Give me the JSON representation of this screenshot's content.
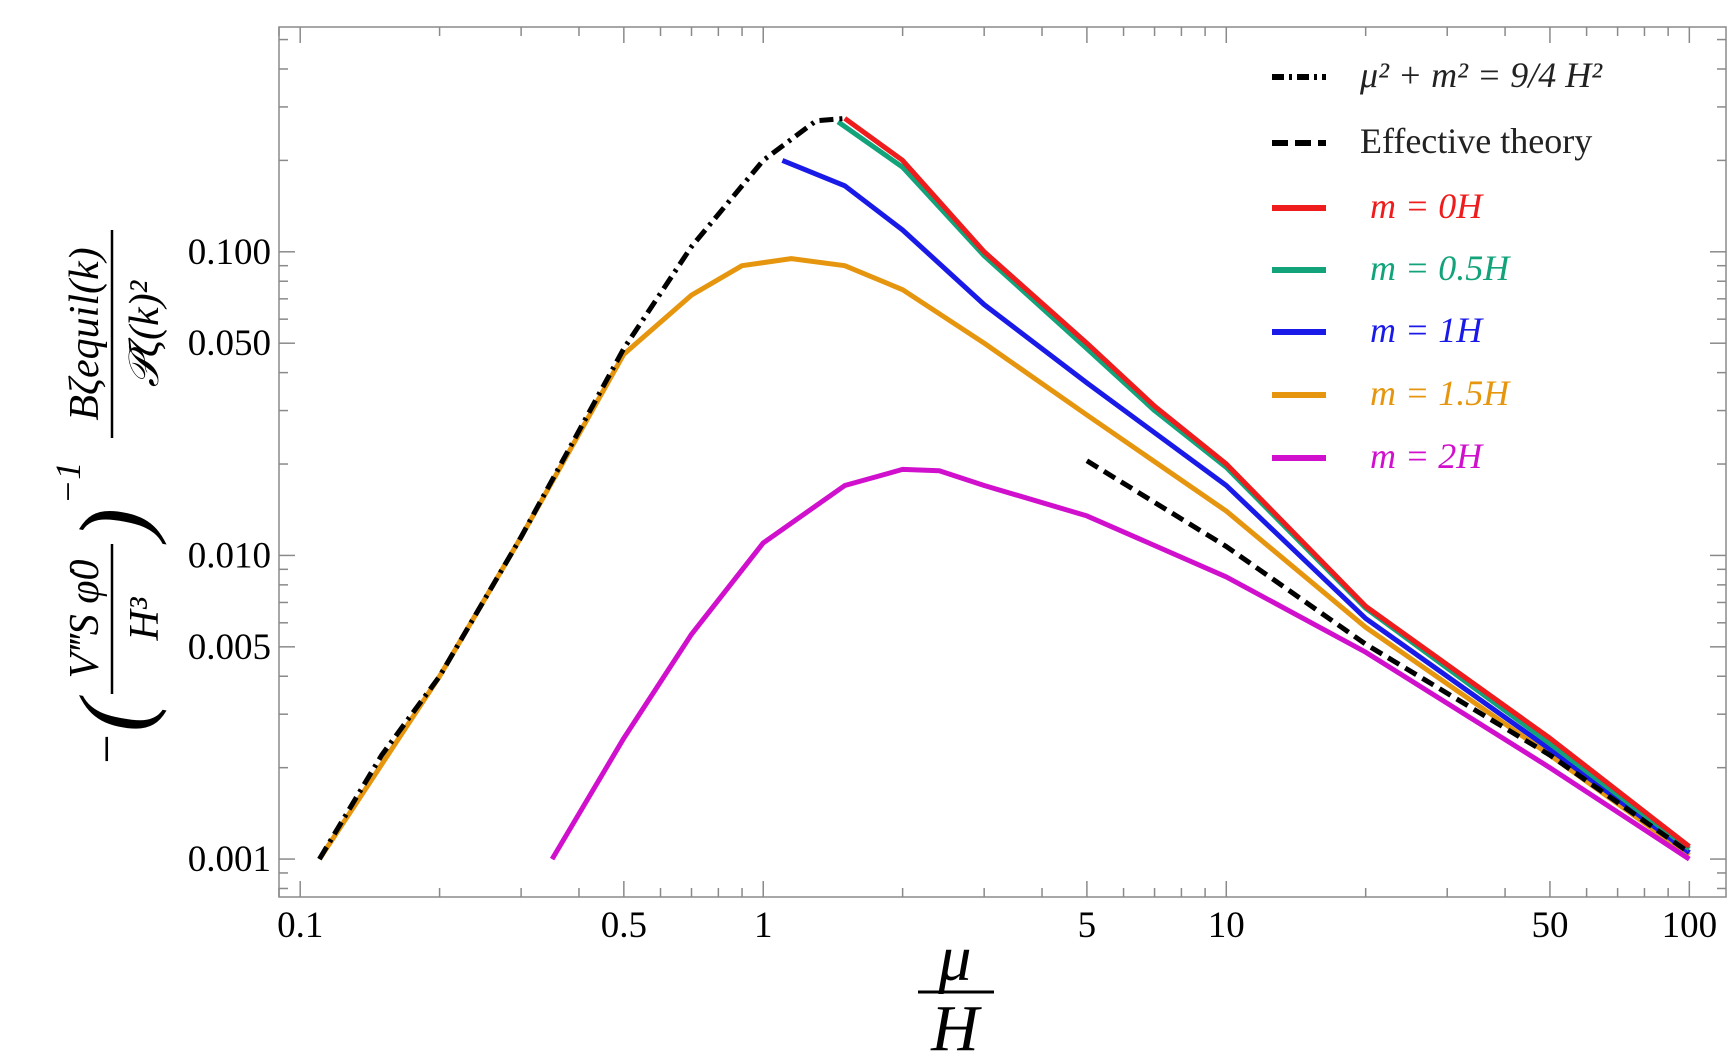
{
  "chart_data": {
    "type": "line",
    "title": "",
    "xscale": "log",
    "yscale": "log",
    "xlim": [
      0.09,
      120
    ],
    "ylim": [
      0.00075,
      0.55
    ],
    "xticks": [
      {
        "value": 0.1,
        "label": "0.1"
      },
      {
        "value": 0.5,
        "label": "0.5"
      },
      {
        "value": 1,
        "label": "1"
      },
      {
        "value": 5,
        "label": "5"
      },
      {
        "value": 10,
        "label": "10"
      },
      {
        "value": 50,
        "label": "50"
      },
      {
        "value": 100,
        "label": "100"
      }
    ],
    "yticks": [
      {
        "value": 0.001,
        "label": "0.001"
      },
      {
        "value": 0.005,
        "label": "0.005"
      },
      {
        "value": 0.01,
        "label": "0.010"
      },
      {
        "value": 0.05,
        "label": "0.050"
      },
      {
        "value": 0.1,
        "label": "0.100"
      }
    ],
    "xlabel": {
      "numerator": "μ",
      "denominator": "H"
    },
    "ylabel": {
      "prefix": "−",
      "inner_num": "V‴S φ̇0",
      "inner_den": "H³",
      "exponent": "−1",
      "outer_num": "Bζequil(k)",
      "outer_den": "𝒫ζ(k)²"
    },
    "legend": {
      "position": "top-right",
      "entries": [
        {
          "label": "μ² + m² = 9/4 H²",
          "color": "#000000",
          "style": "dash-dot"
        },
        {
          "label": "Effective theory",
          "color": "#000000",
          "style": "dashed"
        },
        {
          "label": "m = 0H",
          "color": "#ee1c1c",
          "style": "solid"
        },
        {
          "label": "m = 0.5H",
          "color": "#12a37a",
          "style": "solid"
        },
        {
          "label": "m = 1H",
          "color": "#1a1ae8",
          "style": "solid"
        },
        {
          "label": "m = 1.5H",
          "color": "#e6960e",
          "style": "solid"
        },
        {
          "label": "m = 2H",
          "color": "#d010cc",
          "style": "solid"
        }
      ]
    },
    "series": [
      {
        "name": "μ² + m² = 9/4 H²",
        "color": "#000000",
        "dash": "14,6,3,6",
        "x": [
          0.11,
          0.15,
          0.2,
          0.3,
          0.5,
          0.7,
          1.0,
          1.3,
          1.5
        ],
        "y": [
          0.001,
          0.0022,
          0.004,
          0.0115,
          0.048,
          0.104,
          0.2,
          0.27,
          0.275
        ]
      },
      {
        "name": "Effective theory",
        "color": "#000000",
        "dash": "13,7",
        "x": [
          5,
          10,
          20,
          50,
          100
        ],
        "y": [
          0.0205,
          0.0107,
          0.0051,
          0.0022,
          0.00105
        ]
      },
      {
        "name": "m = 0H",
        "color": "#ee1c1c",
        "dash": "",
        "x": [
          1.5,
          2,
          3,
          5,
          7,
          10,
          20,
          50,
          100
        ],
        "y": [
          0.275,
          0.2,
          0.1,
          0.05,
          0.031,
          0.02,
          0.0068,
          0.0025,
          0.0011
        ]
      },
      {
        "name": "m = 0.5H",
        "color": "#12a37a",
        "dash": "",
        "x": [
          1.45,
          2,
          3,
          5,
          7,
          10,
          20,
          50,
          100
        ],
        "y": [
          0.268,
          0.19,
          0.097,
          0.048,
          0.03,
          0.0195,
          0.0067,
          0.0024,
          0.00108
        ]
      },
      {
        "name": "m = 1H",
        "color": "#1a1ae8",
        "dash": "",
        "x": [
          1.1,
          1.5,
          2,
          3,
          5,
          10,
          20,
          50,
          100
        ],
        "y": [
          0.2,
          0.165,
          0.118,
          0.067,
          0.037,
          0.017,
          0.0062,
          0.0023,
          0.00105
        ]
      },
      {
        "name": "m = 1.5H",
        "color": "#e6960e",
        "dash": "",
        "x": [
          0.11,
          0.2,
          0.3,
          0.5,
          0.7,
          0.9,
          1.15,
          1.5,
          2,
          3,
          5,
          10,
          20,
          50,
          100
        ],
        "y": [
          0.001,
          0.004,
          0.0115,
          0.046,
          0.072,
          0.09,
          0.095,
          0.09,
          0.075,
          0.05,
          0.029,
          0.014,
          0.0058,
          0.0022,
          0.00103
        ]
      },
      {
        "name": "m = 2H",
        "color": "#d010cc",
        "dash": "",
        "x": [
          0.35,
          0.5,
          0.7,
          1.0,
          1.5,
          2.0,
          2.4,
          3.0,
          5,
          10,
          20,
          50,
          100
        ],
        "y": [
          0.001,
          0.0025,
          0.0055,
          0.011,
          0.017,
          0.0192,
          0.019,
          0.017,
          0.0135,
          0.0085,
          0.0048,
          0.002,
          0.001
        ]
      }
    ]
  }
}
